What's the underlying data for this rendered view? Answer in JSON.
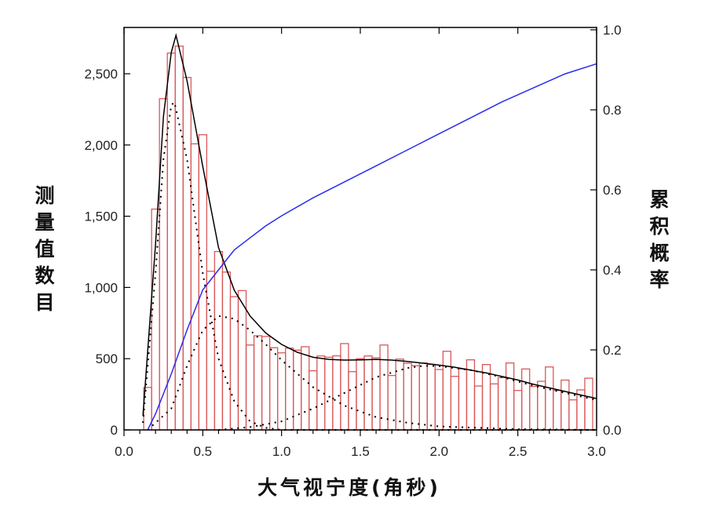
{
  "chart_data": {
    "type": "bar",
    "xlabel": "大气视宁度(角秒)",
    "ylabel": "测量值数目",
    "y2label": "累积概率",
    "xlim": [
      0,
      3.0
    ],
    "ylim": [
      0,
      2825
    ],
    "y2lim": [
      0,
      1.0
    ],
    "grid": false,
    "x_ticks": [
      "0.0",
      "0.5",
      "1.0",
      "1.5",
      "2.0",
      "2.5",
      "3.0"
    ],
    "y_ticks": [
      "0",
      "500",
      "1,000",
      "1,500",
      "2,000",
      "2,500"
    ],
    "y2_ticks": [
      "0.0",
      "0.2",
      "0.4",
      "0.6",
      "0.8",
      "1.0"
    ],
    "colors": {
      "histogram": "#d9585a",
      "fit": "#000000",
      "components": "#000000",
      "cumulative": "#2b2bf0"
    },
    "histogram": {
      "bin_width": 0.05,
      "bin_centers": [
        0.15,
        0.2,
        0.25,
        0.3,
        0.35,
        0.4,
        0.45,
        0.5,
        0.55,
        0.6,
        0.65,
        0.7,
        0.75,
        0.8,
        0.85,
        0.9,
        0.95,
        1.0,
        1.05,
        1.1,
        1.15,
        1.2,
        1.25,
        1.3,
        1.35,
        1.4,
        1.45,
        1.5,
        1.55,
        1.6,
        1.65,
        1.7,
        1.75,
        1.8,
        1.85,
        1.9,
        1.95,
        2.0,
        2.05,
        2.1,
        2.15,
        2.2,
        2.25,
        2.3,
        2.35,
        2.4,
        2.45,
        2.5,
        2.55,
        2.6,
        2.65,
        2.7,
        2.75,
        2.8,
        2.85,
        2.9,
        2.95
      ],
      "counts": [
        298,
        1550,
        2325,
        2645,
        2694,
        2474,
        2008,
        2072,
        1114,
        1252,
        1108,
        935,
        978,
        596,
        661,
        656,
        577,
        541,
        574,
        560,
        584,
        415,
        519,
        510,
        520,
        606,
        409,
        500,
        519,
        506,
        596,
        382,
        497,
        468,
        451,
        470,
        460,
        424,
        552,
        376,
        428,
        492,
        308,
        459,
        323,
        367,
        470,
        277,
        428,
        305,
        341,
        442,
        277,
        350,
        211,
        281,
        363
      ]
    },
    "fit_total": {
      "x": [
        0.12,
        0.2,
        0.25,
        0.3,
        0.33,
        0.4,
        0.5,
        0.6,
        0.7,
        0.8,
        0.9,
        1.0,
        1.1,
        1.2,
        1.3,
        1.4,
        1.5,
        1.6,
        1.7,
        1.8,
        1.9,
        2.0,
        2.1,
        2.2,
        2.3,
        2.4,
        2.5,
        2.6,
        2.7,
        2.8,
        2.9,
        3.0
      ],
      "y": [
        100,
        1300,
        2200,
        2650,
        2770,
        2450,
        1850,
        1280,
        980,
        800,
        680,
        600,
        545,
        510,
        495,
        490,
        492,
        495,
        490,
        480,
        468,
        455,
        440,
        420,
        400,
        375,
        350,
        320,
        295,
        270,
        245,
        220
      ]
    },
    "components": [
      {
        "x": [
          0.12,
          0.2,
          0.25,
          0.3,
          0.32,
          0.4,
          0.5,
          0.6,
          0.7,
          0.8,
          0.9,
          1.0,
          3.0
        ],
        "y": [
          50,
          1100,
          1900,
          2280,
          2300,
          1900,
          1100,
          500,
          200,
          60,
          15,
          0,
          0
        ]
      },
      {
        "x": [
          0.15,
          0.3,
          0.4,
          0.5,
          0.6,
          0.7,
          0.8,
          0.9,
          1.0,
          1.2,
          1.4,
          1.6,
          1.8,
          2.0,
          2.5,
          3.0
        ],
        "y": [
          0,
          150,
          450,
          700,
          800,
          780,
          700,
          600,
          490,
          300,
          170,
          90,
          50,
          25,
          5,
          0
        ]
      },
      {
        "x": [
          0.6,
          0.8,
          1.0,
          1.2,
          1.4,
          1.6,
          1.8,
          1.9,
          2.0,
          2.2,
          2.4,
          2.6,
          2.8,
          3.0
        ],
        "y": [
          0,
          20,
          60,
          150,
          260,
          370,
          435,
          450,
          448,
          420,
          370,
          310,
          260,
          210
        ]
      }
    ],
    "cumulative": {
      "x": [
        0.15,
        0.2,
        0.3,
        0.4,
        0.5,
        0.6,
        0.7,
        0.8,
        0.9,
        1.0,
        1.2,
        1.4,
        1.6,
        1.8,
        2.0,
        2.2,
        2.4,
        2.6,
        2.8,
        3.0
      ],
      "y": [
        0,
        0.04,
        0.14,
        0.25,
        0.35,
        0.4,
        0.45,
        0.48,
        0.51,
        0.535,
        0.58,
        0.62,
        0.66,
        0.7,
        0.74,
        0.78,
        0.82,
        0.855,
        0.89,
        0.915
      ]
    }
  }
}
